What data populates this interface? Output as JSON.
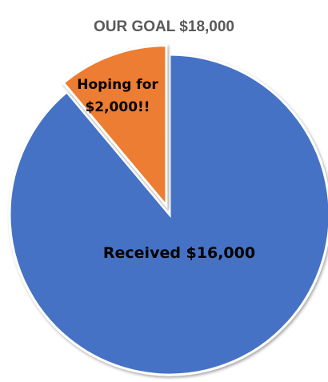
{
  "chart_data": {
    "type": "pie",
    "title": "OUR GOAL $18,000",
    "start_angle_deg": 0,
    "direction": "clockwise",
    "slices": [
      {
        "label": "Received $16,000",
        "label_lines": [
          "Received $16,000"
        ],
        "value": 16000,
        "color": "#4472C4",
        "exploded": false
      },
      {
        "label": "Hoping for $2,000!!",
        "label_lines": [
          "Hoping for",
          "$2,000!!"
        ],
        "value": 2000,
        "color": "#ED7D31",
        "exploded": true
      }
    ]
  }
}
